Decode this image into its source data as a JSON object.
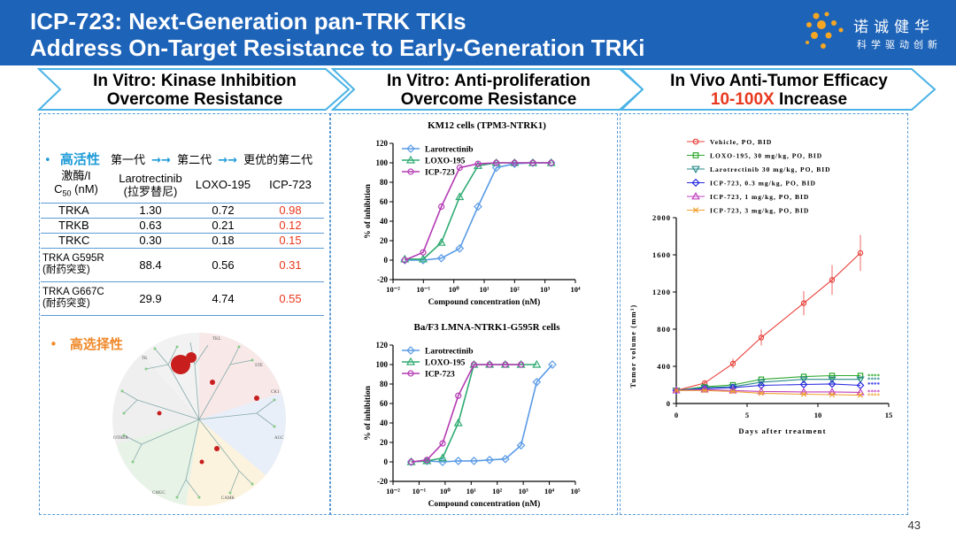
{
  "header": {
    "title_line1": "ICP-723: Next-Generation pan-TRK TKIs",
    "title_line2": "Address On-Target Resistance to Early-Generation TRKi",
    "logo_name": "诺诚健华",
    "logo_slogan": "科学驱动创新",
    "bg_color": "#1d63b8"
  },
  "sections": [
    {
      "line1": "In Vitro: Kinase Inhibition",
      "line2": "Overcome Resistance"
    },
    {
      "line1": "In Vitro: Anti-proliferation",
      "line2": "Overcome Resistance"
    },
    {
      "line1": "In Vivo Anti-Tumor Efficacy",
      "line2_highlight": "10-100X",
      "line2_rest": " Increase"
    }
  ],
  "left_panel": {
    "bullet1": {
      "highlight": "高活性",
      "gen1": "第一代",
      "arrow": "→→",
      "gen2": "第二代",
      "gen3": "更优的第二代"
    },
    "table": {
      "headers": [
        "激酶/IC50 (nM)",
        "Larotrectinib (拉罗替尼)",
        "LOXO-195",
        "ICP-723"
      ],
      "header_lines": {
        "col0_l1": "激酶/I",
        "col0_l2a": "C",
        "col0_sub": "50",
        "col0_l2b": " (nM)",
        "col1_l1": "Larotrectinib",
        "col1_l2": "(拉罗替尼)",
        "col2": "LOXO-195",
        "col3": "ICP-723"
      },
      "rows": [
        {
          "kinase": "TRKA",
          "laro": "1.30",
          "loxo": "0.72",
          "icp": "0.98"
        },
        {
          "kinase": "TRKB",
          "laro": "0.63",
          "loxo": "0.21",
          "icp": "0.12"
        },
        {
          "kinase": "TRKC",
          "laro": "0.30",
          "loxo": "0.18",
          "icp": "0.15"
        },
        {
          "kinase": "TRKA G595R",
          "kinase_note": "(耐药突变)",
          "laro": "88.4",
          "loxo": "0.56",
          "icp": "0.31"
        },
        {
          "kinase": "TRKA G667C",
          "kinase_note": "(耐药突变)",
          "laro": "29.9",
          "loxo": "4.74",
          "icp": "0.55"
        }
      ]
    },
    "bullet2": "高选择性",
    "kinome_labels": {
      "tk": "TK",
      "tkl": "TKL",
      "ste": "STE",
      "ck1": "CK1",
      "agc": "AGC",
      "other": "OTHER",
      "camk": "CAMK",
      "cmgc": "CMGC"
    }
  },
  "chart_data": [
    {
      "type": "line",
      "title": "KM12 cells (TPM3-NTRK1)",
      "xlabel": "Compound concentration (nM)",
      "ylabel": "% of inhibition",
      "x_scale": "log",
      "xlim": [
        0.01,
        10000
      ],
      "ylim": [
        -20,
        120
      ],
      "x_ticks": [
        "10⁻²",
        "10⁻¹",
        "10⁰",
        "10¹",
        "10²",
        "10³",
        "10⁴"
      ],
      "y_ticks": [
        -20,
        0,
        20,
        40,
        60,
        80,
        100,
        120
      ],
      "legend_position": "top-left",
      "series": [
        {
          "name": "Larotrectinib",
          "marker": "diamond",
          "color": "#5a9be6",
          "x": [
            0.0244,
            0.0977,
            0.39,
            1.56,
            6.25,
            25,
            100,
            400,
            1600
          ],
          "y": [
            0,
            0,
            2,
            12,
            55,
            95,
            99,
            100,
            100
          ]
        },
        {
          "name": "LOXO-195",
          "marker": "triangle",
          "color": "#2eaa72",
          "x": [
            0.0244,
            0.0977,
            0.39,
            1.56,
            6.25,
            25,
            100,
            400,
            1600
          ],
          "y": [
            1,
            1,
            18,
            65,
            97,
            100,
            100,
            100,
            100
          ]
        },
        {
          "name": "ICP-723",
          "marker": "circle",
          "color": "#b43bb4",
          "x": [
            0.0244,
            0.0977,
            0.39,
            1.56,
            6.25,
            25,
            100,
            400,
            1600
          ],
          "y": [
            0,
            8,
            55,
            95,
            99,
            100,
            100,
            100,
            100
          ]
        }
      ]
    },
    {
      "type": "line",
      "title": "Ba/F3 LMNA-NTRK1-G595R cells",
      "xlabel": "Compound concentration (nM)",
      "ylabel": "% of inhibition",
      "x_scale": "log",
      "xlim": [
        0.01,
        100000
      ],
      "ylim": [
        -20,
        120
      ],
      "x_ticks": [
        "10⁻²",
        "10⁻¹",
        "10⁰",
        "10¹",
        "10²",
        "10³",
        "10⁴",
        "10⁵"
      ],
      "y_ticks": [
        -20,
        0,
        20,
        40,
        60,
        80,
        100,
        120
      ],
      "legend_position": "top-left",
      "series": [
        {
          "name": "Larotrectinib",
          "marker": "diamond",
          "color": "#5a9be6",
          "x": [
            0.05,
            0.2,
            0.8,
            3.2,
            12.8,
            51,
            205,
            819,
            3277,
            13107
          ],
          "y": [
            0,
            1,
            0,
            1,
            1,
            2,
            3,
            17,
            82,
            100
          ]
        },
        {
          "name": "LOXO-195",
          "marker": "triangle",
          "color": "#2eaa72",
          "x": [
            0.05,
            0.2,
            0.8,
            3.2,
            12.8,
            51,
            205,
            819,
            3277
          ],
          "y": [
            0,
            1,
            4,
            40,
            100,
            100,
            100,
            100,
            100
          ]
        },
        {
          "name": "ICP-723",
          "marker": "circle",
          "color": "#b43bb4",
          "x": [
            0.05,
            0.2,
            0.8,
            3.2,
            12.8,
            51,
            205,
            819
          ],
          "y": [
            0,
            2,
            19,
            68,
            100,
            100,
            100,
            100
          ]
        }
      ]
    },
    {
      "type": "line",
      "title": "",
      "xlabel": "Days after treatment",
      "ylabel": "Tumor volume (mm³)",
      "xlim": [
        0,
        15
      ],
      "ylim": [
        0,
        2000
      ],
      "x_ticks": [
        0,
        5,
        10,
        15
      ],
      "y_ticks": [
        0,
        400,
        800,
        1200,
        1600,
        2000
      ],
      "legend_position": "top",
      "series": [
        {
          "name": "Vehicle, PO, BID",
          "marker": "circle",
          "color": "#e8413b",
          "x": [
            0,
            2,
            4,
            6,
            9,
            11,
            13
          ],
          "y": [
            140,
            220,
            430,
            710,
            1080,
            1330,
            1620
          ]
        },
        {
          "name": "LOXO-195, 30 mg/kg, PO, BID",
          "marker": "square",
          "color": "#2ca82c",
          "x": [
            0,
            2,
            4,
            6,
            9,
            11,
            13
          ],
          "y": [
            140,
            180,
            200,
            260,
            290,
            300,
            300
          ]
        },
        {
          "name": "Larotrectinib 30 mg/kg, PO, BID",
          "marker": "triangle-down",
          "color": "#2a8a8a",
          "x": [
            0,
            2,
            4,
            6,
            9,
            11,
            13
          ],
          "y": [
            140,
            170,
            180,
            230,
            260,
            260,
            260
          ]
        },
        {
          "name": "ICP-723, 0.3 mg/kg, PO, BID",
          "marker": "diamond",
          "color": "#2a2ae0",
          "x": [
            0,
            2,
            4,
            6,
            9,
            11,
            13
          ],
          "y": [
            140,
            160,
            170,
            195,
            205,
            210,
            195
          ]
        },
        {
          "name": "ICP-723, 1 mg/kg, PO, BID",
          "marker": "triangle",
          "color": "#c03fc0",
          "x": [
            0,
            2,
            4,
            6,
            9,
            11,
            13
          ],
          "y": [
            140,
            150,
            140,
            130,
            125,
            125,
            120
          ]
        },
        {
          "name": "ICP-723, 3 mg/kg, PO, BID",
          "marker": "cross",
          "color": "#f0a030",
          "x": [
            0,
            2,
            4,
            6,
            9,
            11,
            13
          ],
          "y": [
            140,
            140,
            130,
            110,
            100,
            95,
            90
          ]
        }
      ],
      "significance_marks": [
        "****",
        "****",
        "****",
        "****",
        "****"
      ]
    }
  ],
  "page_number": "43"
}
